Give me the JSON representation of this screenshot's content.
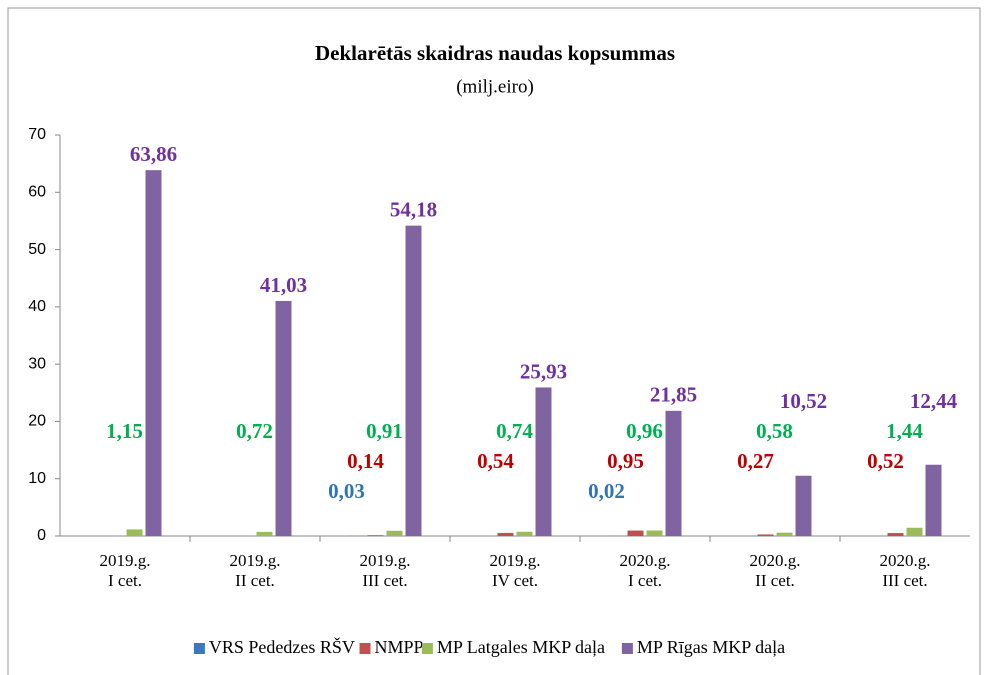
{
  "chart_data": {
    "type": "bar",
    "title": "Deklarētās skaidras naudas kopsummas",
    "subtitle": "(milj.eiro)",
    "categories": [
      [
        "2019.g.",
        "I cet."
      ],
      [
        "2019.g.",
        "II cet."
      ],
      [
        "2019.g.",
        "III cet."
      ],
      [
        "2019.g.",
        "IV cet."
      ],
      [
        "2020.g.",
        "I cet."
      ],
      [
        "2020.g.",
        "II cet."
      ],
      [
        "2020.g.",
        "III cet."
      ]
    ],
    "series": [
      {
        "name": "VRS Pededzes RŠV",
        "color": "#3a78c3",
        "label_color": "#2e75b6",
        "values": [
          null,
          null,
          0.03,
          null,
          0.02,
          null,
          null
        ],
        "value_labels": [
          null,
          null,
          "0,03",
          null,
          "0,02",
          null,
          null
        ]
      },
      {
        "name": "NMPP",
        "color": "#c0504d",
        "label_color": "#c00000",
        "values": [
          null,
          null,
          0.14,
          0.54,
          0.95,
          0.27,
          0.52
        ],
        "value_labels": [
          null,
          null,
          "0,14",
          "0,54",
          "0,95",
          "0,27",
          "0,52"
        ]
      },
      {
        "name": "MP Latgales MKP daļa",
        "color": "#9bbb59",
        "label_color": "#00b050",
        "values": [
          1.15,
          0.72,
          0.91,
          0.74,
          0.96,
          0.58,
          1.44
        ],
        "value_labels": [
          "1,15",
          "0,72",
          "0,91",
          "0,74",
          "0,96",
          "0,58",
          "1,44"
        ]
      },
      {
        "name": "MP Rīgas MKP daļa",
        "color": "#8064a2",
        "label_color": "#7030a0",
        "values": [
          63.86,
          41.03,
          54.18,
          25.93,
          21.85,
          10.52,
          12.44
        ],
        "value_labels": [
          "63,86",
          "41,03",
          "54,18",
          "25,93",
          "21,85",
          "10,52",
          "12,44"
        ]
      }
    ],
    "ylim": [
      0,
      70
    ],
    "yticks": [
      0,
      10,
      20,
      30,
      40,
      50,
      60,
      70
    ],
    "grid": false
  }
}
